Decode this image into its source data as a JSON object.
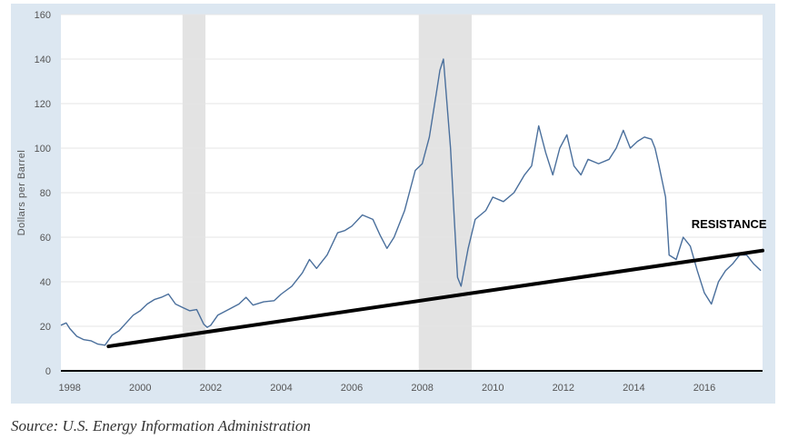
{
  "chart_data": {
    "type": "line",
    "title": "",
    "xlabel": "",
    "ylabel": "Dollars per Barrel",
    "xlim": [
      1997.75,
      2017.65
    ],
    "ylim": [
      0,
      160
    ],
    "x_ticks": [
      1998,
      2000,
      2002,
      2004,
      2006,
      2008,
      2010,
      2012,
      2014,
      2016
    ],
    "y_ticks": [
      0,
      20,
      40,
      60,
      80,
      100,
      120,
      140,
      160
    ],
    "grid": "horizontal",
    "colors": {
      "series": "#4a6f9c",
      "trendline": "#000000",
      "recession": "#e3e3e3",
      "background": "#dce7f1"
    },
    "recession_bands": [
      [
        2001.2,
        2001.85
      ],
      [
        2007.9,
        2009.4
      ]
    ],
    "series": [
      {
        "x": [
          1997.75,
          1997.9,
          1998.0,
          1998.2,
          1998.4,
          1998.6,
          1998.8,
          1999.0,
          1999.2,
          1999.4,
          1999.6,
          1999.8,
          2000.0,
          2000.2,
          2000.4,
          2000.6,
          2000.8,
          2001.0,
          2001.2,
          2001.4,
          2001.6,
          2001.8,
          2001.9,
          2002.0,
          2002.2,
          2002.5,
          2002.8,
          2003.0,
          2003.2,
          2003.5,
          2003.8,
          2004.0,
          2004.3,
          2004.6,
          2004.8,
          2005.0,
          2005.3,
          2005.6,
          2005.8,
          2006.0,
          2006.3,
          2006.6,
          2006.8,
          2007.0,
          2007.2,
          2007.5,
          2007.8,
          2008.0,
          2008.2,
          2008.4,
          2008.5,
          2008.6,
          2008.7,
          2008.8,
          2008.9,
          2009.0,
          2009.1,
          2009.3,
          2009.5,
          2009.8,
          2010.0,
          2010.3,
          2010.6,
          2010.9,
          2011.1,
          2011.3,
          2011.5,
          2011.7,
          2011.9,
          2012.1,
          2012.3,
          2012.5,
          2012.7,
          2013.0,
          2013.3,
          2013.5,
          2013.7,
          2013.9,
          2014.1,
          2014.3,
          2014.5,
          2014.6,
          2014.7,
          2014.9,
          2015.0,
          2015.2,
          2015.4,
          2015.6,
          2015.8,
          2016.0,
          2016.2,
          2016.4,
          2016.6,
          2016.8,
          2017.0,
          2017.2,
          2017.4,
          2017.6
        ],
        "values": [
          20.5,
          21.5,
          19.0,
          15.5,
          14.0,
          13.5,
          12.0,
          11.5,
          16.0,
          18.0,
          21.5,
          25.0,
          27.0,
          30.0,
          32.0,
          33.0,
          34.5,
          30.0,
          28.5,
          27.0,
          27.5,
          21.0,
          19.5,
          20.5,
          25.0,
          27.5,
          30.0,
          33.0,
          29.5,
          31.0,
          31.5,
          34.5,
          38.0,
          44.0,
          50.0,
          46.0,
          52.0,
          62.0,
          63.0,
          65.0,
          70.0,
          68.0,
          61.0,
          55.0,
          60.0,
          72.0,
          90.0,
          93.0,
          105.0,
          125.0,
          135.0,
          140.0,
          120.0,
          100.0,
          70.0,
          42.0,
          38.0,
          55.0,
          68.0,
          72.0,
          78.0,
          76.0,
          80.0,
          88.0,
          92.0,
          110.0,
          98.0,
          88.0,
          100.0,
          106.0,
          92.0,
          88.0,
          95.0,
          93.0,
          95.0,
          100.0,
          108.0,
          100.0,
          103.0,
          105.0,
          104.0,
          100.0,
          93.0,
          78.0,
          52.0,
          50.0,
          60.0,
          56.0,
          45.0,
          35.0,
          30.0,
          40.0,
          45.0,
          48.0,
          52.0,
          52.0,
          48.0,
          45.0
        ]
      }
    ],
    "trendline": {
      "x": [
        1999.1,
        2017.65
      ],
      "values": [
        11.0,
        54.0
      ]
    },
    "annotations": [
      {
        "text": "RESISTANCE",
        "x": 2016.7,
        "y": 64
      }
    ]
  },
  "source": "Source: U.S. Energy Information Administration"
}
